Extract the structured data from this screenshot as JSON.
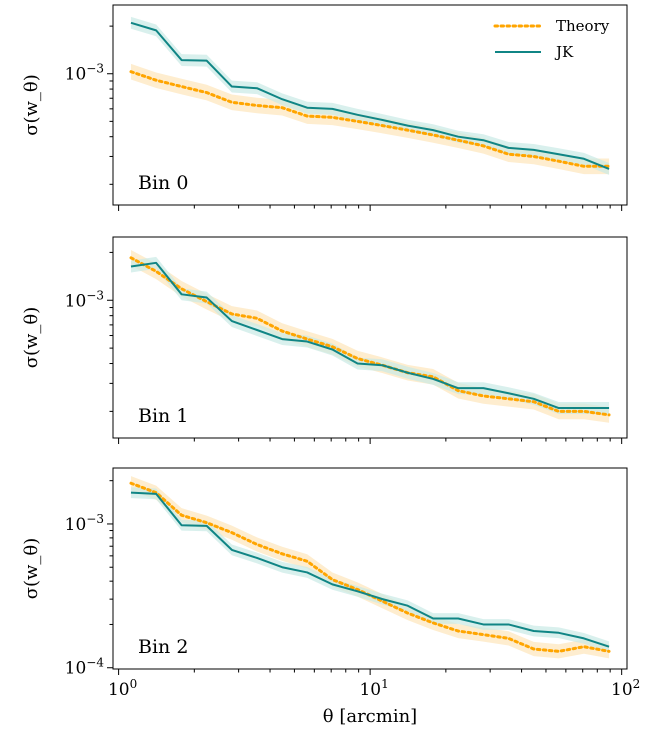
{
  "chart_data": [
    {
      "type": "line",
      "panel_label": "Bin 0",
      "ylabel": "σ(w_θ)",
      "xlabel": "",
      "xscale": "log",
      "yscale": "log",
      "xlim": [
        0.95,
        105
      ],
      "ylim": [
        0.000148,
        0.00272
      ],
      "y_ticks": [
        {
          "value": 0.001,
          "base": "10",
          "exp": "−3"
        }
      ],
      "x": [
        1.12,
        1.41,
        1.78,
        2.24,
        2.82,
        3.55,
        4.47,
        5.62,
        7.08,
        8.91,
        11.2,
        14.1,
        17.8,
        22.4,
        28.2,
        35.5,
        44.7,
        56.2,
        70.8,
        89.1
      ],
      "series": [
        {
          "name": "Theory",
          "style": "dotted",
          "color": "#FFA500",
          "values": [
            0.00103,
            0.00091,
            0.00083,
            0.00076,
            0.00066,
            0.00063,
            0.00061,
            0.00054,
            0.00053,
            0.0005,
            0.00047,
            0.00044,
            0.00041,
            0.00038,
            0.00035,
            0.00031,
            0.0003,
            0.00028,
            0.00026,
            0.00026
          ]
        },
        {
          "name": "JK",
          "style": "solid",
          "color": "#108585",
          "values": [
            0.0021,
            0.00188,
            0.00122,
            0.00121,
            0.00083,
            0.00081,
            0.00069,
            0.00061,
            0.0006,
            0.00055,
            0.00051,
            0.00047,
            0.00044,
            0.0004,
            0.00038,
            0.00034,
            0.00033,
            0.00031,
            0.00029,
            0.00025
          ]
        }
      ]
    },
    {
      "type": "line",
      "panel_label": "Bin 1",
      "ylabel": "σ(w_θ)",
      "xlabel": "",
      "xscale": "log",
      "yscale": "log",
      "xlim": [
        0.95,
        105
      ],
      "ylim": [
        0.000136,
        0.0025
      ],
      "y_ticks": [
        {
          "value": 0.001,
          "base": "10",
          "exp": "−3"
        }
      ],
      "x": [
        1.12,
        1.41,
        1.78,
        2.24,
        2.82,
        3.55,
        4.47,
        5.62,
        7.08,
        8.91,
        11.2,
        14.1,
        17.8,
        22.4,
        28.2,
        35.5,
        44.7,
        56.2,
        70.8,
        89.1
      ],
      "series": [
        {
          "name": "Theory",
          "style": "dotted",
          "color": "#FFA500",
          "values": [
            0.00185,
            0.00152,
            0.00118,
            0.00098,
            0.00082,
            0.00077,
            0.00064,
            0.00057,
            0.00051,
            0.00043,
            0.00039,
            0.00035,
            0.00033,
            0.00027,
            0.00025,
            0.00024,
            0.00023,
            0.0002,
            0.0002,
            0.00019
          ]
        },
        {
          "name": "JK",
          "style": "solid",
          "color": "#108585",
          "values": [
            0.00163,
            0.00172,
            0.00109,
            0.00104,
            0.00074,
            0.00065,
            0.00057,
            0.00055,
            0.00049,
            0.0004,
            0.00039,
            0.00035,
            0.00032,
            0.00028,
            0.00028,
            0.00026,
            0.00024,
            0.00021,
            0.00021,
            0.00021
          ]
        }
      ]
    },
    {
      "type": "line",
      "panel_label": "Bin 2",
      "ylabel": "σ(w_θ)",
      "xlabel": "θ [arcmin]",
      "xscale": "log",
      "yscale": "log",
      "xlim": [
        0.95,
        105
      ],
      "ylim": [
        9.8e-05,
        0.00245
      ],
      "y_ticks": [
        {
          "value": 0.001,
          "base": "10",
          "exp": "−3"
        },
        {
          "value": 0.0001,
          "base": "10",
          "exp": "−4"
        }
      ],
      "x_ticks": [
        {
          "value": 1,
          "base": "10",
          "exp": "0"
        },
        {
          "value": 10,
          "base": "10",
          "exp": "1"
        },
        {
          "value": 100,
          "base": "10",
          "exp": "2"
        }
      ],
      "x": [
        1.12,
        1.41,
        1.78,
        2.24,
        2.82,
        3.55,
        4.47,
        5.62,
        7.08,
        8.91,
        11.2,
        14.1,
        17.8,
        22.4,
        28.2,
        35.5,
        44.7,
        56.2,
        70.8,
        89.1
      ],
      "series": [
        {
          "name": "Theory",
          "style": "dotted",
          "color": "#FFA500",
          "values": [
            0.00192,
            0.00165,
            0.00115,
            0.00102,
            0.00087,
            0.00072,
            0.00062,
            0.00055,
            0.00041,
            0.00035,
            0.00029,
            0.00024,
            0.000205,
            0.00018,
            0.00017,
            0.00016,
            0.000135,
            0.00013,
            0.00014,
            0.00013
          ]
        },
        {
          "name": "JK",
          "style": "solid",
          "color": "#108585",
          "values": [
            0.00165,
            0.00162,
            0.00098,
            0.00097,
            0.00066,
            0.00058,
            0.0005,
            0.00046,
            0.00038,
            0.00034,
            0.0003,
            0.00027,
            0.00022,
            0.00022,
            0.0002,
            0.0002,
            0.00018,
            0.000175,
            0.00016,
            0.00014
          ]
        }
      ]
    }
  ],
  "legend": {
    "position": "top-right",
    "entries": [
      {
        "label": "Theory",
        "color": "#FFA500",
        "style": "dotted"
      },
      {
        "label": "JK",
        "color": "#108585",
        "style": "solid"
      }
    ]
  },
  "colors": {
    "theory": "#FFA500",
    "theory_band": "#FDE7BF",
    "jk": "#108585",
    "jk_band": "#C9E9E6"
  }
}
